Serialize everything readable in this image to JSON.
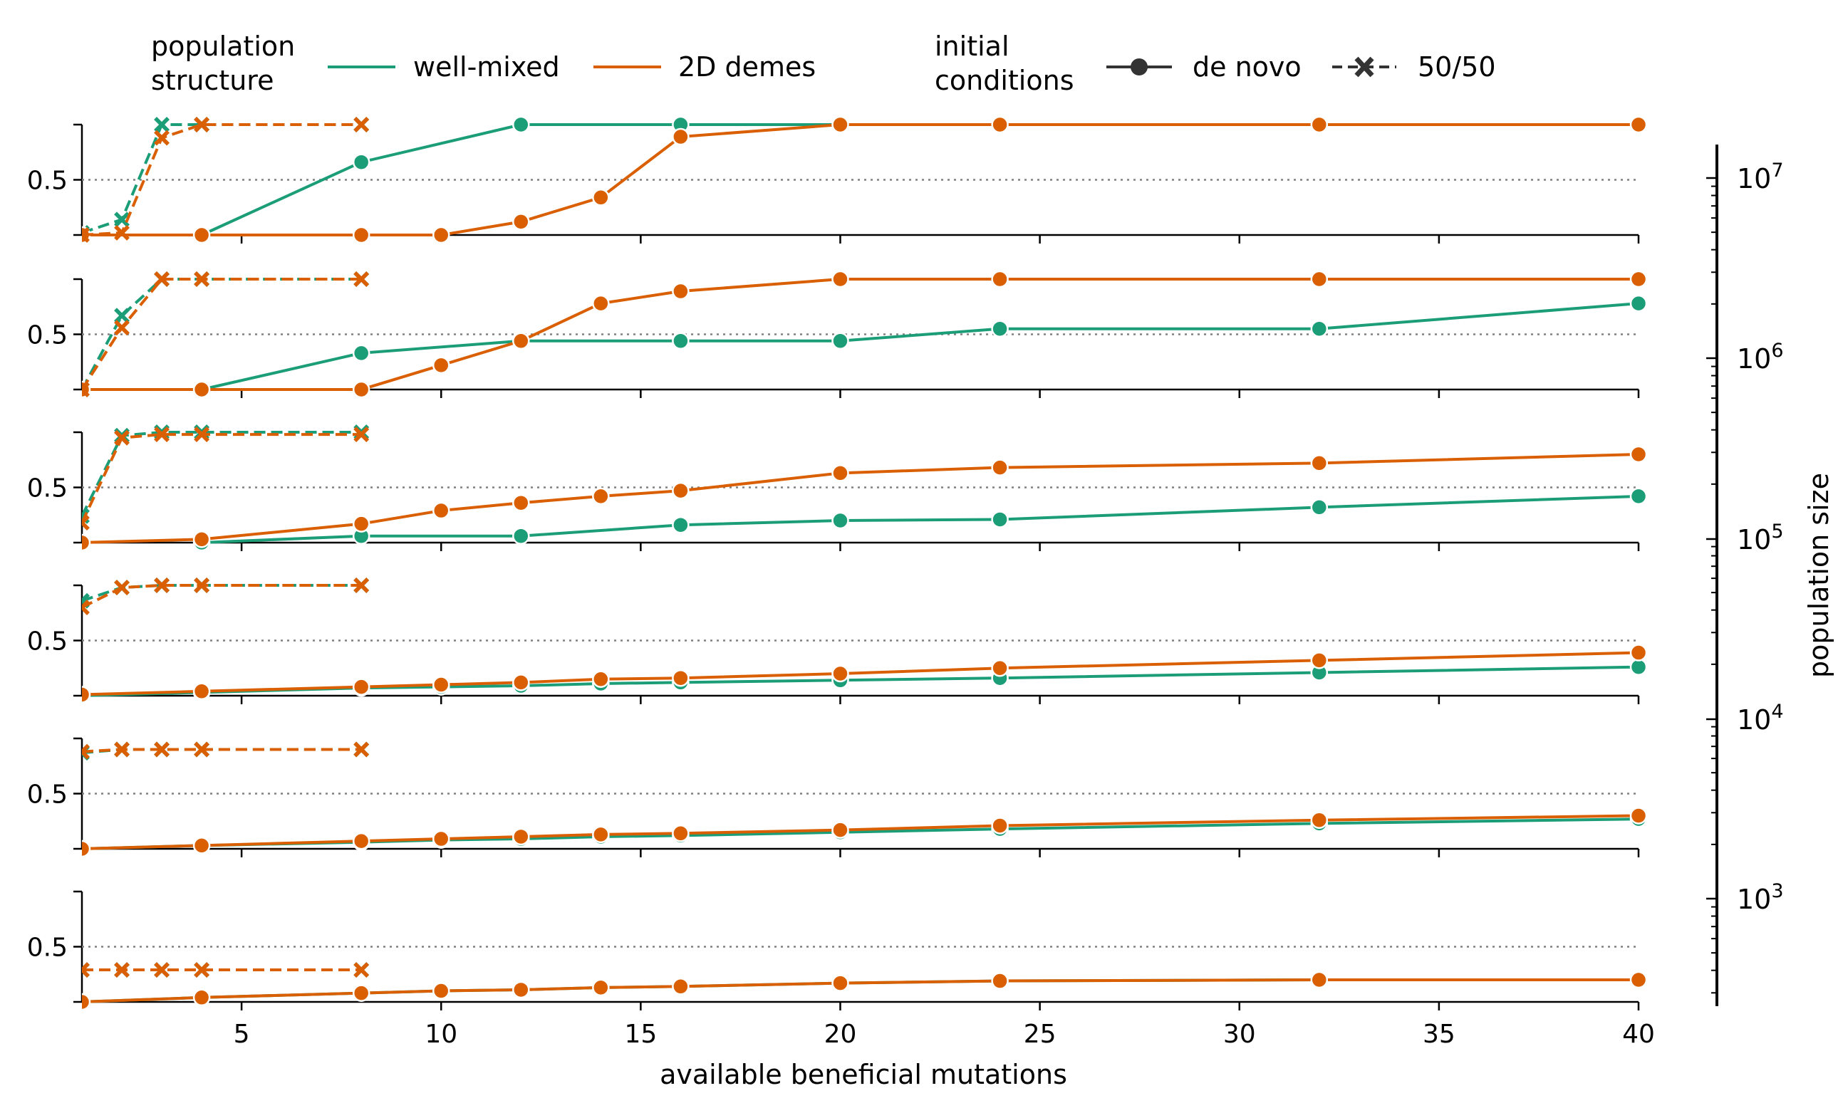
{
  "legend": {
    "structure_title": "population\nstructure",
    "structure_items": [
      {
        "label": "well-mixed",
        "color": "#1b9e77"
      },
      {
        "label": "2D demes",
        "color": "#d95f02"
      }
    ],
    "conditions_title": "initial\nconditions",
    "condition_items": [
      {
        "label": "de novo",
        "marker": "circle",
        "line": "solid"
      },
      {
        "label": "50/50",
        "marker": "x",
        "line": "dashed"
      }
    ]
  },
  "colors": {
    "well_mixed": "#1b9e77",
    "demes": "#d95f02",
    "reference_line": "#808080"
  },
  "chart_data": {
    "type": "line",
    "xlabel": "available beneficial mutations",
    "xlim": [
      1,
      40
    ],
    "x_ticks": [
      5,
      10,
      15,
      20,
      25,
      30,
      35,
      40
    ],
    "ylim": [
      0,
      1
    ],
    "y_ticks": [
      0.5
    ],
    "reference_y": 0.5,
    "colorbar": {
      "label": "population size",
      "scale": "log",
      "ticks": [
        "10^3",
        "10^4",
        "10^5",
        "10^6",
        "10^7"
      ]
    },
    "panels": [
      {
        "population_size": 10000000,
        "series": [
          {
            "structure": "well-mixed",
            "condition": "de novo",
            "x": [
              4,
              8,
              12,
              16,
              20,
              24,
              32,
              40
            ],
            "y": [
              0.0,
              0.66,
              1.0,
              1.0,
              1.0,
              1.0,
              1.0,
              1.0
            ]
          },
          {
            "structure": "2D demes",
            "condition": "de novo",
            "x": [
              1,
              4,
              8,
              10,
              12,
              14,
              16,
              20,
              24,
              32,
              40
            ],
            "y": [
              0.0,
              0.0,
              0.0,
              0.0,
              0.12,
              0.34,
              0.89,
              1.0,
              1.0,
              1.0,
              1.0
            ]
          },
          {
            "structure": "well-mixed",
            "condition": "50/50",
            "x": [
              1,
              2,
              3,
              4,
              8
            ],
            "y": [
              0.02,
              0.14,
              1.0,
              1.0,
              1.0
            ]
          },
          {
            "structure": "2D demes",
            "condition": "50/50",
            "x": [
              1,
              2,
              3,
              4,
              8
            ],
            "y": [
              0.0,
              0.02,
              0.88,
              1.0,
              1.0
            ]
          }
        ]
      },
      {
        "population_size": 3000000,
        "series": [
          {
            "structure": "well-mixed",
            "condition": "de novo",
            "x": [
              4,
              8,
              12,
              16,
              20,
              24,
              32,
              40
            ],
            "y": [
              0.0,
              0.33,
              0.44,
              0.44,
              0.44,
              0.55,
              0.55,
              0.78
            ]
          },
          {
            "structure": "2D demes",
            "condition": "de novo",
            "x": [
              1,
              4,
              8,
              10,
              12,
              14,
              16,
              20,
              24,
              32,
              40
            ],
            "y": [
              0.0,
              0.0,
              0.0,
              0.22,
              0.44,
              0.78,
              0.89,
              1.0,
              1.0,
              1.0,
              1.0
            ]
          },
          {
            "structure": "well-mixed",
            "condition": "50/50",
            "x": [
              1,
              2,
              3,
              4,
              8
            ],
            "y": [
              0.0,
              0.67,
              1.0,
              1.0,
              1.0
            ]
          },
          {
            "structure": "2D demes",
            "condition": "50/50",
            "x": [
              1,
              2,
              3,
              4,
              8
            ],
            "y": [
              0.0,
              0.56,
              1.0,
              1.0,
              1.0
            ]
          }
        ]
      },
      {
        "population_size": 300000,
        "series": [
          {
            "structure": "well-mixed",
            "condition": "de novo",
            "x": [
              4,
              8,
              12,
              16,
              20,
              24,
              32,
              40
            ],
            "y": [
              0.0,
              0.06,
              0.06,
              0.16,
              0.2,
              0.21,
              0.32,
              0.42
            ]
          },
          {
            "structure": "2D demes",
            "condition": "de novo",
            "x": [
              1,
              4,
              8,
              10,
              12,
              14,
              16,
              20,
              24,
              32,
              40
            ],
            "y": [
              0.0,
              0.03,
              0.17,
              0.29,
              0.36,
              0.42,
              0.47,
              0.63,
              0.68,
              0.72,
              0.8
            ]
          },
          {
            "structure": "well-mixed",
            "condition": "50/50",
            "x": [
              1,
              2,
              3,
              4,
              8
            ],
            "y": [
              0.24,
              0.97,
              1.0,
              1.0,
              1.0
            ]
          },
          {
            "structure": "2D demes",
            "condition": "50/50",
            "x": [
              1,
              2,
              3,
              4,
              8
            ],
            "y": [
              0.18,
              0.95,
              0.98,
              0.98,
              0.98
            ]
          }
        ]
      },
      {
        "population_size": 30000,
        "series": [
          {
            "structure": "well-mixed",
            "condition": "de novo",
            "x": [
              1,
              4,
              8,
              10,
              12,
              14,
              16,
              20,
              24,
              32,
              40
            ],
            "y": [
              0.0,
              0.03,
              0.07,
              0.08,
              0.09,
              0.11,
              0.12,
              0.14,
              0.16,
              0.21,
              0.26
            ]
          },
          {
            "structure": "2D demes",
            "condition": "de novo",
            "x": [
              1,
              4,
              8,
              10,
              12,
              14,
              16,
              20,
              24,
              32,
              40
            ],
            "y": [
              0.01,
              0.04,
              0.08,
              0.1,
              0.12,
              0.15,
              0.16,
              0.2,
              0.25,
              0.32,
              0.39
            ]
          },
          {
            "structure": "well-mixed",
            "condition": "50/50",
            "x": [
              1,
              2,
              3,
              4,
              8
            ],
            "y": [
              0.86,
              0.98,
              1.0,
              1.0,
              1.0
            ]
          },
          {
            "structure": "2D demes",
            "condition": "50/50",
            "x": [
              1,
              2,
              3,
              4,
              8
            ],
            "y": [
              0.8,
              0.98,
              1.0,
              1.0,
              1.0
            ]
          }
        ]
      },
      {
        "population_size": 3000,
        "series": [
          {
            "structure": "well-mixed",
            "condition": "de novo",
            "x": [
              1,
              4,
              8,
              10,
              12,
              14,
              16,
              20,
              24,
              32,
              40
            ],
            "y": [
              0.0,
              0.03,
              0.06,
              0.08,
              0.09,
              0.11,
              0.12,
              0.15,
              0.18,
              0.23,
              0.27
            ]
          },
          {
            "structure": "2D demes",
            "condition": "de novo",
            "x": [
              1,
              4,
              8,
              10,
              12,
              14,
              16,
              20,
              24,
              32,
              40
            ],
            "y": [
              0.0,
              0.03,
              0.07,
              0.09,
              0.11,
              0.13,
              0.14,
              0.17,
              0.21,
              0.26,
              0.3
            ]
          },
          {
            "structure": "well-mixed",
            "condition": "50/50",
            "x": [
              1,
              2,
              3,
              4,
              8
            ],
            "y": [
              0.87,
              0.9,
              0.9,
              0.9,
              0.9
            ]
          },
          {
            "structure": "2D demes",
            "condition": "50/50",
            "x": [
              1,
              2,
              3,
              4,
              8
            ],
            "y": [
              0.88,
              0.9,
              0.9,
              0.9,
              0.9
            ]
          }
        ]
      },
      {
        "population_size": 500,
        "series": [
          {
            "structure": "well-mixed",
            "condition": "de novo",
            "x": [
              1,
              4,
              8,
              10,
              12,
              14,
              16,
              20,
              24,
              32,
              40
            ],
            "y": [
              0.0,
              0.04,
              0.08,
              0.1,
              0.11,
              0.13,
              0.14,
              0.17,
              0.19,
              0.2,
              0.2
            ]
          },
          {
            "structure": "2D demes",
            "condition": "de novo",
            "x": [
              1,
              4,
              8,
              10,
              12,
              14,
              16,
              20,
              24,
              32,
              40
            ],
            "y": [
              0.0,
              0.04,
              0.08,
              0.1,
              0.11,
              0.13,
              0.14,
              0.17,
              0.19,
              0.2,
              0.2
            ]
          },
          {
            "structure": "well-mixed",
            "condition": "50/50",
            "x": [
              1,
              2,
              3,
              4,
              8
            ],
            "y": [
              0.29,
              0.29,
              0.29,
              0.29,
              0.29
            ]
          },
          {
            "structure": "2D demes",
            "condition": "50/50",
            "x": [
              1,
              2,
              3,
              4,
              8
            ],
            "y": [
              0.29,
              0.29,
              0.29,
              0.29,
              0.29
            ]
          }
        ]
      }
    ]
  }
}
